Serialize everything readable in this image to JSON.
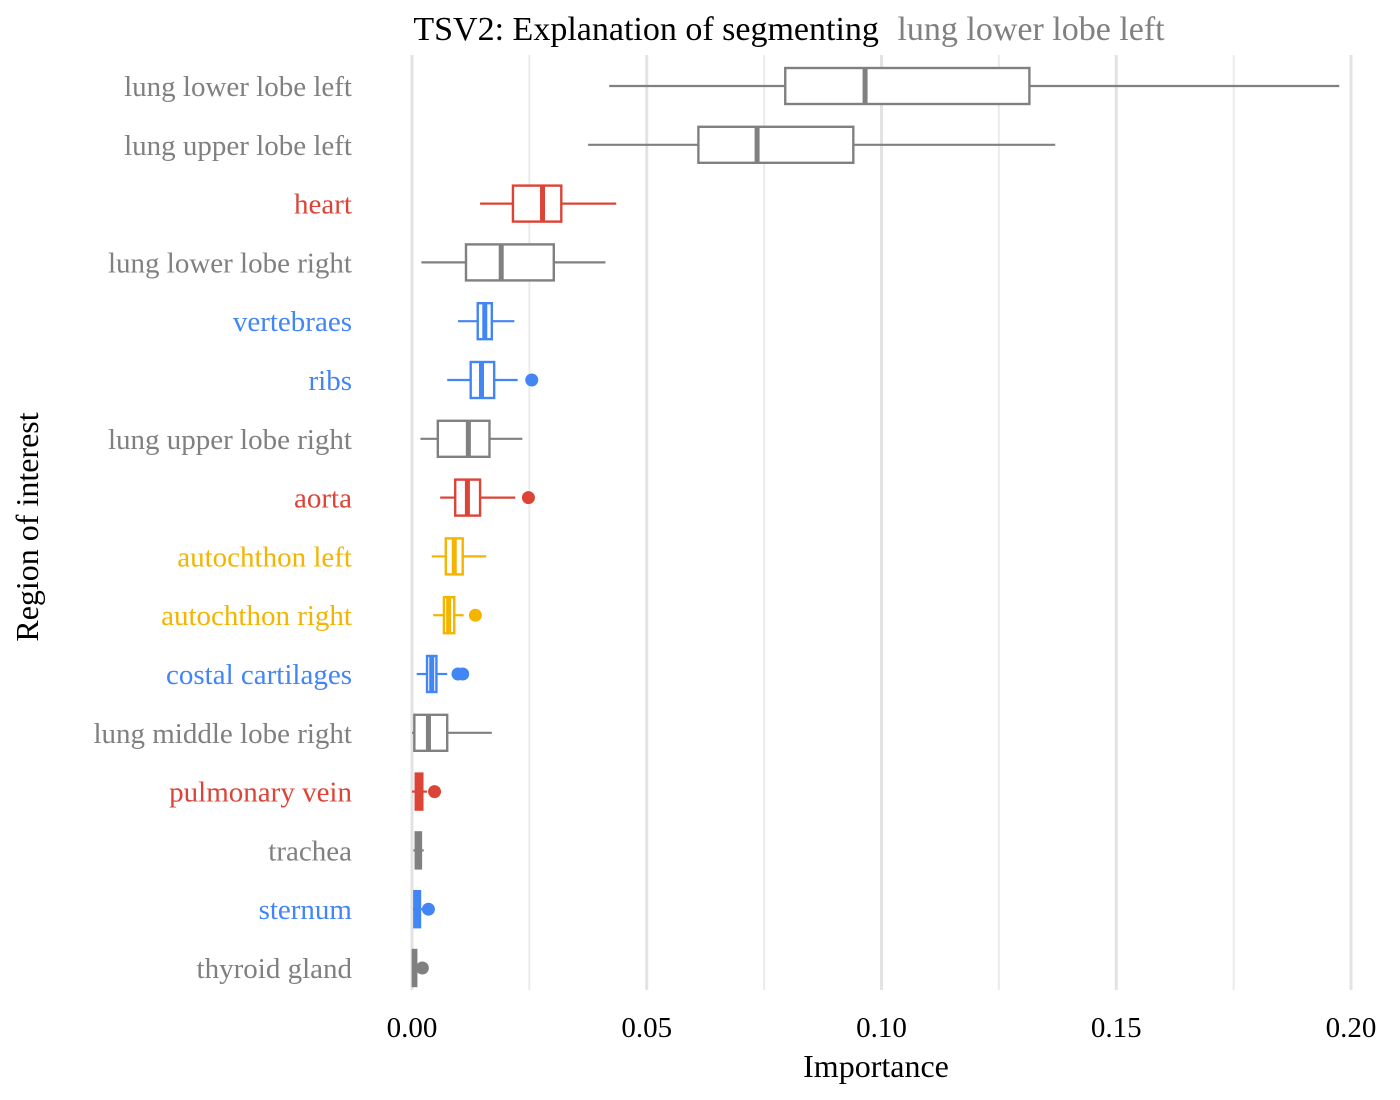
{
  "chart_data": {
    "type": "boxplot",
    "title_prefix": "TSV2: Explanation of segmenting",
    "title_highlight": "lung lower lobe left",
    "title_highlight_color": "#808080",
    "xlabel": "Importance",
    "ylabel": "Region of interest",
    "xlim": [
      0.0,
      0.2
    ],
    "xticks": [
      0.0,
      0.05,
      0.1,
      0.15,
      0.2
    ],
    "xtick_labels": [
      "0.00",
      "0.05",
      "0.10",
      "0.15",
      "0.20"
    ],
    "grid": "vertical",
    "colors": {
      "gray": "#808080",
      "red": "#DB4437",
      "blue": "#4285F4",
      "yellow": "#F4B400"
    },
    "series": [
      {
        "name": "lung lower lobe left",
        "color": "gray",
        "whisker_low": 0.042,
        "q1": 0.0795,
        "median": 0.0965,
        "q3": 0.1315,
        "whisker_high": 0.1975,
        "outliers": []
      },
      {
        "name": "lung upper lobe left",
        "color": "gray",
        "whisker_low": 0.0375,
        "q1": 0.061,
        "median": 0.0735,
        "q3": 0.094,
        "whisker_high": 0.137,
        "outliers": []
      },
      {
        "name": "heart",
        "color": "red",
        "whisker_low": 0.0145,
        "q1": 0.0215,
        "median": 0.0278,
        "q3": 0.0318,
        "whisker_high": 0.0435,
        "outliers": []
      },
      {
        "name": "lung lower lobe right",
        "color": "gray",
        "whisker_low": 0.002,
        "q1": 0.0115,
        "median": 0.019,
        "q3": 0.0302,
        "whisker_high": 0.0412,
        "outliers": []
      },
      {
        "name": "vertebraes",
        "color": "blue",
        "whisker_low": 0.0098,
        "q1": 0.014,
        "median": 0.0155,
        "q3": 0.017,
        "whisker_high": 0.0218,
        "outliers": []
      },
      {
        "name": "ribs",
        "color": "blue",
        "whisker_low": 0.0075,
        "q1": 0.0125,
        "median": 0.0148,
        "q3": 0.0175,
        "whisker_high": 0.0225,
        "outliers": [
          0.0255
        ]
      },
      {
        "name": "lung upper lobe right",
        "color": "gray",
        "whisker_low": 0.0018,
        "q1": 0.0055,
        "median": 0.012,
        "q3": 0.0165,
        "whisker_high": 0.0235,
        "outliers": []
      },
      {
        "name": "aorta",
        "color": "red",
        "whisker_low": 0.006,
        "q1": 0.0092,
        "median": 0.0118,
        "q3": 0.0145,
        "whisker_high": 0.022,
        "outliers": [
          0.0248
        ]
      },
      {
        "name": "autochthon left",
        "color": "yellow",
        "whisker_low": 0.0042,
        "q1": 0.0072,
        "median": 0.009,
        "q3": 0.0108,
        "whisker_high": 0.0158,
        "outliers": []
      },
      {
        "name": "autochthon right",
        "color": "yellow",
        "whisker_low": 0.0045,
        "q1": 0.0068,
        "median": 0.0078,
        "q3": 0.009,
        "whisker_high": 0.011,
        "outliers": [
          0.0135
        ]
      },
      {
        "name": "costal cartilages",
        "color": "blue",
        "whisker_low": 0.001,
        "q1": 0.0032,
        "median": 0.0042,
        "q3": 0.0052,
        "whisker_high": 0.0075,
        "outliers": [
          0.0098,
          0.0108
        ]
      },
      {
        "name": "lung middle lobe right",
        "color": "gray",
        "whisker_low": 0.0,
        "q1": 0.0005,
        "median": 0.0035,
        "q3": 0.0075,
        "whisker_high": 0.017,
        "outliers": []
      },
      {
        "name": "pulmonary vein",
        "color": "red",
        "whisker_low": 0.0,
        "q1": 0.0008,
        "median": 0.0015,
        "q3": 0.0022,
        "whisker_high": 0.0032,
        "outliers": [
          0.0048
        ]
      },
      {
        "name": "trachea",
        "color": "gray",
        "whisker_low": 0.0003,
        "q1": 0.0008,
        "median": 0.0014,
        "q3": 0.0019,
        "whisker_high": 0.0025,
        "outliers": []
      },
      {
        "name": "sternum",
        "color": "blue",
        "whisker_low": 0.0002,
        "q1": 0.0005,
        "median": 0.0011,
        "q3": 0.0017,
        "whisker_high": 0.0023,
        "outliers": [
          0.0035
        ]
      },
      {
        "name": "thyroid gland",
        "color": "gray",
        "whisker_low": 0.0,
        "q1": 0.0002,
        "median": 0.0005,
        "q3": 0.0009,
        "whisker_high": 0.0014,
        "outliers": [
          0.0022
        ]
      }
    ]
  }
}
